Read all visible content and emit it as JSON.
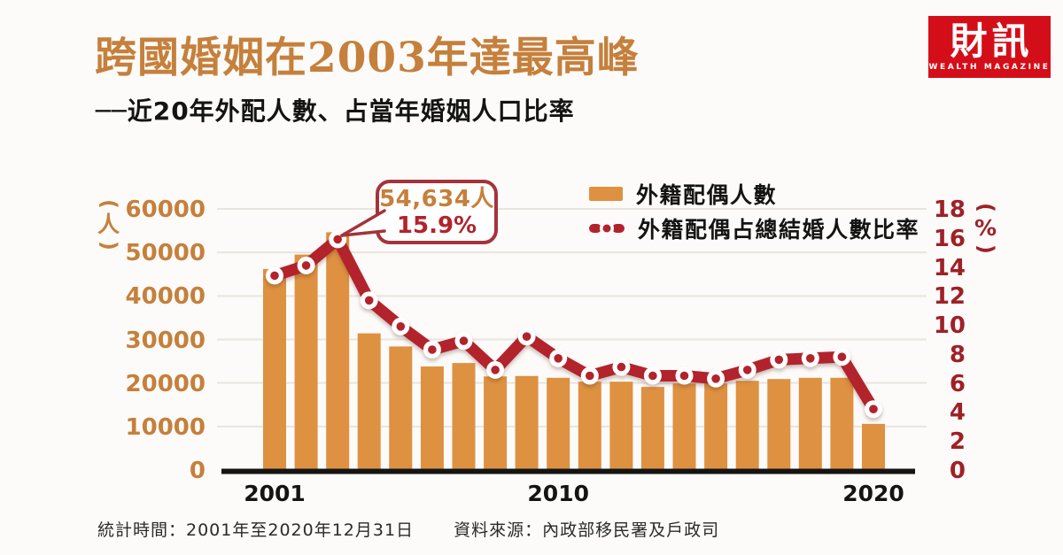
{
  "colors": {
    "bar": "#de9141",
    "line": "#b2232c",
    "title": "#c5803c",
    "right_axis": "#9e2128",
    "logo": "#d40e18",
    "grid": "#e8e5df",
    "axis": "#141414",
    "callout_border": "#a5333b"
  },
  "header": {
    "title": "跨國婚姻在2003年達最高峰",
    "subtitle": "──近20年外配人數、占當年婚姻人口比率"
  },
  "logo": {
    "name": "財訊",
    "tagline": "WEALTH MAGAZINE"
  },
  "legend": [
    {
      "type": "bar-swatch",
      "label": "外籍配偶人數",
      "color": "#de9141"
    },
    {
      "type": "line-swatch",
      "label": "外籍配偶占總結婚人數比率",
      "color": "#b2232c"
    }
  ],
  "callout": {
    "line1": "54,634人",
    "line2": "15.9%",
    "target_year": 2003
  },
  "axes": {
    "left": {
      "unit": "(人)",
      "ticks": [
        60000,
        50000,
        40000,
        30000,
        20000,
        10000,
        0
      ],
      "color": "#c5803c"
    },
    "right": {
      "unit": "(%)",
      "ticks": [
        18,
        16,
        14,
        12,
        10,
        8,
        6,
        4,
        2,
        0
      ],
      "color": "#9e2128"
    },
    "x": {
      "labels": [
        "2001",
        "2010",
        "2020"
      ]
    }
  },
  "footer": {
    "stat_period": "統計時間：2001年至2020年12月31日",
    "source": "資料來源：內政部移民署及戶政司"
  },
  "chart_data": {
    "type": "bar+line combo",
    "title": "跨國婚姻在2003年達最高峰──近20年外配人數、占當年婚姻人口比率",
    "categories": [
      2001,
      2002,
      2003,
      2004,
      2005,
      2006,
      2007,
      2008,
      2009,
      2010,
      2011,
      2012,
      2013,
      2014,
      2015,
      2016,
      2017,
      2018,
      2019,
      2020
    ],
    "series": [
      {
        "name": "外籍配偶人數",
        "type": "bar",
        "axis": "left",
        "unit": "人",
        "color": "#de9141",
        "values": [
          46200,
          49500,
          54634,
          31400,
          28400,
          23800,
          24600,
          21500,
          21600,
          21200,
          20300,
          20300,
          19100,
          19900,
          19900,
          20500,
          20900,
          21200,
          21200,
          10600
        ]
      },
      {
        "name": "外籍配偶占總結婚人數比率",
        "type": "line",
        "axis": "right",
        "unit": "%",
        "color": "#b2232c",
        "values": [
          13.4,
          14.1,
          15.9,
          11.7,
          9.9,
          8.3,
          8.9,
          6.9,
          9.2,
          7.7,
          6.5,
          7.1,
          6.5,
          6.5,
          6.3,
          6.9,
          7.6,
          7.7,
          7.8,
          4.2
        ]
      }
    ],
    "left_axis_range": [
      0,
      60000
    ],
    "right_axis_range": [
      0,
      18
    ],
    "grid": true,
    "legend_position": "top-right",
    "annotation": {
      "year": 2003,
      "people": "54,634人",
      "pct": "15.9%"
    }
  }
}
